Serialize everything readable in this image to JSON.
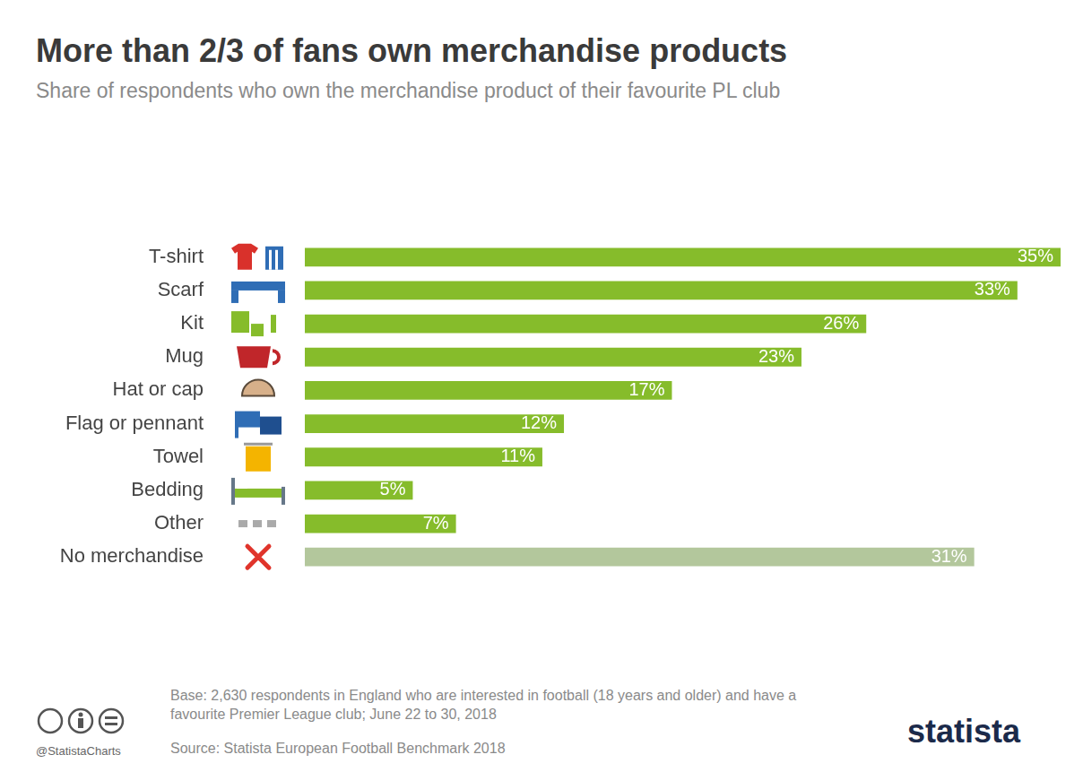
{
  "chart_data": {
    "type": "bar",
    "orientation": "horizontal",
    "title": "More than 2/3 of fans own merchandise products",
    "subtitle": "Share of respondents who own the merchandise product of their favourite PL club",
    "categories": [
      "T-shirt",
      "Scarf",
      "Kit",
      "Mug",
      "Hat or cap",
      "Flag or pennant",
      "Towel",
      "Bedding",
      "Other",
      "No merchandise"
    ],
    "values": [
      35,
      33,
      26,
      23,
      17,
      12,
      11,
      5,
      7,
      31
    ],
    "value_labels": [
      "35%",
      "33%",
      "26%",
      "23%",
      "17%",
      "12%",
      "11%",
      "5%",
      "7%",
      "31%"
    ],
    "colors": [
      "#86bc2b",
      "#86bc2b",
      "#86bc2b",
      "#86bc2b",
      "#86bc2b",
      "#86bc2b",
      "#86bc2b",
      "#86bc2b",
      "#86bc2b",
      "#b3c79c"
    ],
    "xlim": [
      0,
      35
    ],
    "grid": false,
    "data_labels": true,
    "tick_labels": "y"
  },
  "footer": {
    "note": "Base: 2,630 respondents in England who are interested in football (18 years and older) and have a favourite Premier League club; June 22 to 30, 2018",
    "source": "Source: Statista European Football Benchmark 2018",
    "credit": "@StatistaCharts",
    "brand": "statista"
  }
}
